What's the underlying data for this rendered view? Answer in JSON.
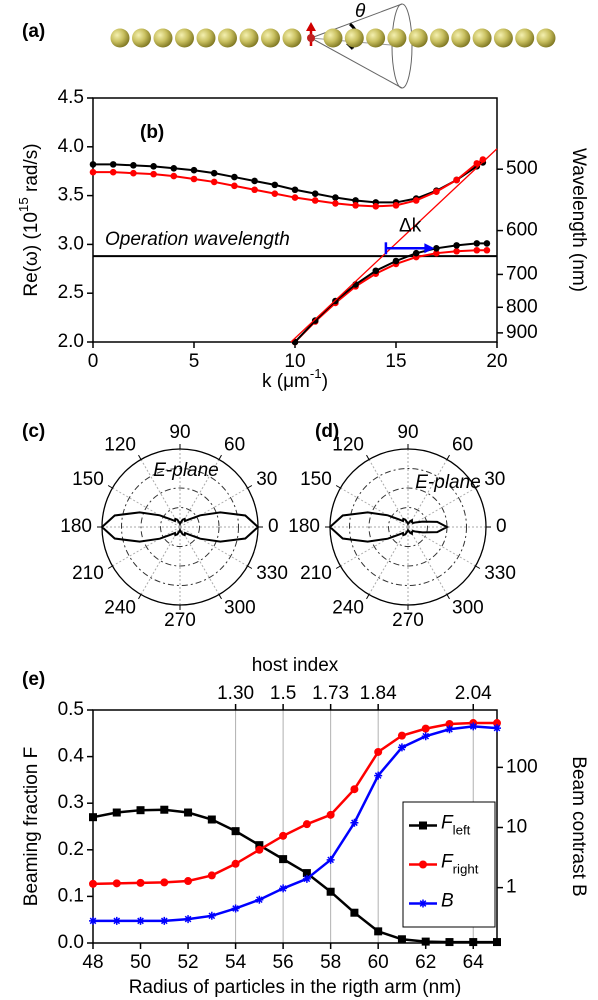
{
  "figure_a": {
    "label": "(a)",
    "angle": "θ"
  },
  "chart_data": [
    {
      "type": "line",
      "label": "(b)",
      "xlabel": [
        "k (μm",
        "-1",
        ")"
      ],
      "ylabel": [
        "Re(ω) (10",
        "15",
        " rad/s)"
      ],
      "y2label": "Wavelength (nm)",
      "xlim": [
        0,
        20
      ],
      "xticks": [
        0,
        5,
        10,
        15,
        20
      ],
      "ylim": [
        2.0,
        4.5
      ],
      "yticks": [
        {
          "value": 2,
          "label": "2.0"
        },
        2.5,
        {
          "value": 3,
          "label": "3.0"
        },
        3.5,
        {
          "value": 4,
          "label": "4.0"
        },
        4.5
      ],
      "y2scale": "reciprocal",
      "y2lim": [
        942,
        419
      ],
      "y2ticks": [
        500,
        600,
        700,
        800,
        900
      ],
      "series": [
        {
          "color": "#000000",
          "marker": "circle",
          "x": [
            0,
            1,
            2,
            3,
            4,
            5,
            6,
            7,
            8,
            9,
            10,
            11,
            12,
            13,
            14,
            15,
            16,
            17,
            18,
            19,
            19.3
          ],
          "values": [
            3.82,
            3.82,
            3.81,
            3.8,
            3.78,
            3.76,
            3.73,
            3.69,
            3.65,
            3.61,
            3.56,
            3.52,
            3.48,
            3.45,
            3.43,
            3.43,
            3.47,
            3.55,
            3.66,
            3.8,
            3.84
          ]
        },
        {
          "color": "#ff0000",
          "marker": "circle",
          "x": [
            0,
            1,
            2,
            3,
            4,
            5,
            6,
            7,
            8,
            9,
            10,
            11,
            12,
            13,
            14,
            15,
            16,
            17,
            18,
            19,
            19.3
          ],
          "values": [
            3.74,
            3.74,
            3.73,
            3.72,
            3.7,
            3.67,
            3.64,
            3.6,
            3.56,
            3.52,
            3.48,
            3.45,
            3.42,
            3.4,
            3.39,
            3.4,
            3.45,
            3.54,
            3.66,
            3.83,
            3.87
          ]
        },
        {
          "color": "#ff0000",
          "marker": "circle",
          "x": [
            10,
            11,
            12,
            13,
            14,
            15,
            16,
            17,
            18,
            19,
            19.5
          ],
          "values": [
            2.0,
            2.21,
            2.4,
            2.57,
            2.7,
            2.8,
            2.87,
            2.91,
            2.93,
            2.94,
            2.94
          ]
        },
        {
          "color": "#000000",
          "marker": "circle",
          "x": [
            10,
            11,
            12,
            13,
            14,
            15,
            16,
            17,
            18,
            19,
            19.5
          ],
          "values": [
            2.0,
            2.22,
            2.42,
            2.59,
            2.73,
            2.83,
            2.91,
            2.96,
            2.99,
            3.01,
            3.01
          ]
        },
        {
          "color": "#ff0000",
          "marker": "none",
          "x": [
            9.8,
            20
          ],
          "values": [
            2.0,
            3.98
          ]
        }
      ],
      "hlines": [
        {
          "value": 2.88,
          "label": "Operation wavelength",
          "color": "#000000"
        }
      ],
      "arrows": [
        {
          "x": [
            14.5,
            16.9
          ],
          "y": 2.96,
          "label": "Δk",
          "color": "#0000ff"
        }
      ]
    },
    {
      "type": "polar",
      "label": "(c)",
      "annotation": "E-plane",
      "rlim": [
        0,
        1
      ],
      "rticks": [
        0.25,
        0.5,
        0.75,
        1
      ],
      "thetaticks": [
        0,
        30,
        60,
        90,
        120,
        150,
        180,
        210,
        240,
        270,
        300,
        330
      ],
      "theta": [
        0,
        10,
        20,
        30,
        40,
        50,
        60,
        70,
        80,
        90,
        100,
        110,
        120,
        130,
        140,
        150,
        160,
        170,
        180,
        190,
        200,
        210,
        220,
        230,
        240,
        250,
        260,
        270,
        280,
        290,
        300,
        310,
        320,
        330,
        340,
        350
      ],
      "r": [
        1.0,
        0.85,
        0.55,
        0.3,
        0.15,
        0.1,
        0.12,
        0.1,
        0.06,
        0.04,
        0.06,
        0.1,
        0.12,
        0.1,
        0.15,
        0.3,
        0.55,
        0.85,
        1.0,
        0.85,
        0.55,
        0.3,
        0.15,
        0.1,
        0.12,
        0.1,
        0.06,
        0.04,
        0.06,
        0.1,
        0.12,
        0.1,
        0.15,
        0.3,
        0.55,
        0.85
      ],
      "color": "#000000"
    },
    {
      "type": "polar",
      "label": "(d)",
      "annotation": "E-plane",
      "rlim": [
        0,
        1
      ],
      "rticks": [
        0.25,
        0.5,
        0.75,
        1
      ],
      "thetaticks": [
        0,
        30,
        60,
        90,
        120,
        150,
        180,
        210,
        240,
        270,
        300,
        330
      ],
      "theta": [
        0,
        10,
        20,
        30,
        40,
        50,
        60,
        70,
        80,
        90,
        100,
        110,
        120,
        130,
        140,
        150,
        160,
        170,
        180,
        190,
        200,
        210,
        220,
        230,
        240,
        250,
        260,
        270,
        280,
        290,
        300,
        310,
        320,
        330,
        340,
        350
      ],
      "r": [
        0.5,
        0.38,
        0.2,
        0.12,
        0.08,
        0.08,
        0.1,
        0.08,
        0.05,
        0.04,
        0.06,
        0.1,
        0.12,
        0.1,
        0.15,
        0.3,
        0.55,
        0.85,
        1.0,
        0.85,
        0.55,
        0.3,
        0.15,
        0.1,
        0.12,
        0.1,
        0.06,
        0.04,
        0.05,
        0.08,
        0.1,
        0.08,
        0.08,
        0.12,
        0.2,
        0.38
      ],
      "color": "#000000"
    },
    {
      "type": "line",
      "label": "(e)",
      "xlabel": "Radius of  particles in the rigth arm (nm)",
      "x2label": "host index",
      "ylabel": "Beaming fraction F",
      "y2label": "Beam contrast B",
      "xlim": [
        48,
        65
      ],
      "xticks": [
        48,
        50,
        52,
        54,
        56,
        58,
        60,
        62,
        64
      ],
      "x2ticks": [
        {
          "value": 54,
          "label": "1.30"
        },
        {
          "value": 56,
          "label": "1.5"
        },
        {
          "value": 58,
          "label": "1.73"
        },
        {
          "value": 60,
          "label": "1.84"
        },
        {
          "value": 64,
          "label": "2.04"
        }
      ],
      "ylim": [
        0,
        0.5
      ],
      "yticks": [
        {
          "value": 0,
          "label": "0.0"
        },
        0.1,
        0.2,
        0.3,
        0.4,
        0.5
      ],
      "y2scale": "log",
      "y2lim": [
        0.12,
        900
      ],
      "y2ticks": [
        1,
        10,
        100
      ],
      "grid": true,
      "legend": "lower right",
      "x": [
        48,
        49,
        50,
        51,
        52,
        53,
        54,
        55,
        56,
        57,
        58,
        59,
        60,
        61,
        62,
        63,
        64,
        65
      ],
      "series": [
        {
          "name": [
            "F",
            "left"
          ],
          "color": "#000000",
          "marker": "square",
          "values": [
            0.27,
            0.28,
            0.285,
            0.286,
            0.28,
            0.265,
            0.24,
            0.21,
            0.18,
            0.15,
            0.11,
            0.065,
            0.025,
            0.008,
            0.003,
            0.002,
            0.002,
            0.002
          ]
        },
        {
          "name": [
            "F",
            "right"
          ],
          "color": "#ff0000",
          "marker": "circle",
          "values": [
            0.127,
            0.128,
            0.129,
            0.13,
            0.133,
            0.145,
            0.17,
            0.2,
            0.23,
            0.255,
            0.275,
            0.33,
            0.41,
            0.445,
            0.46,
            0.47,
            0.472,
            0.472
          ]
        },
        {
          "name": "B",
          "color": "#0000ff",
          "marker": "star",
          "axis": "y2",
          "values": [
            0.28,
            0.28,
            0.28,
            0.28,
            0.3,
            0.34,
            0.45,
            0.63,
            0.97,
            1.4,
            2.9,
            12,
            73,
            215,
            330,
            430,
            480,
            450
          ]
        }
      ]
    }
  ]
}
